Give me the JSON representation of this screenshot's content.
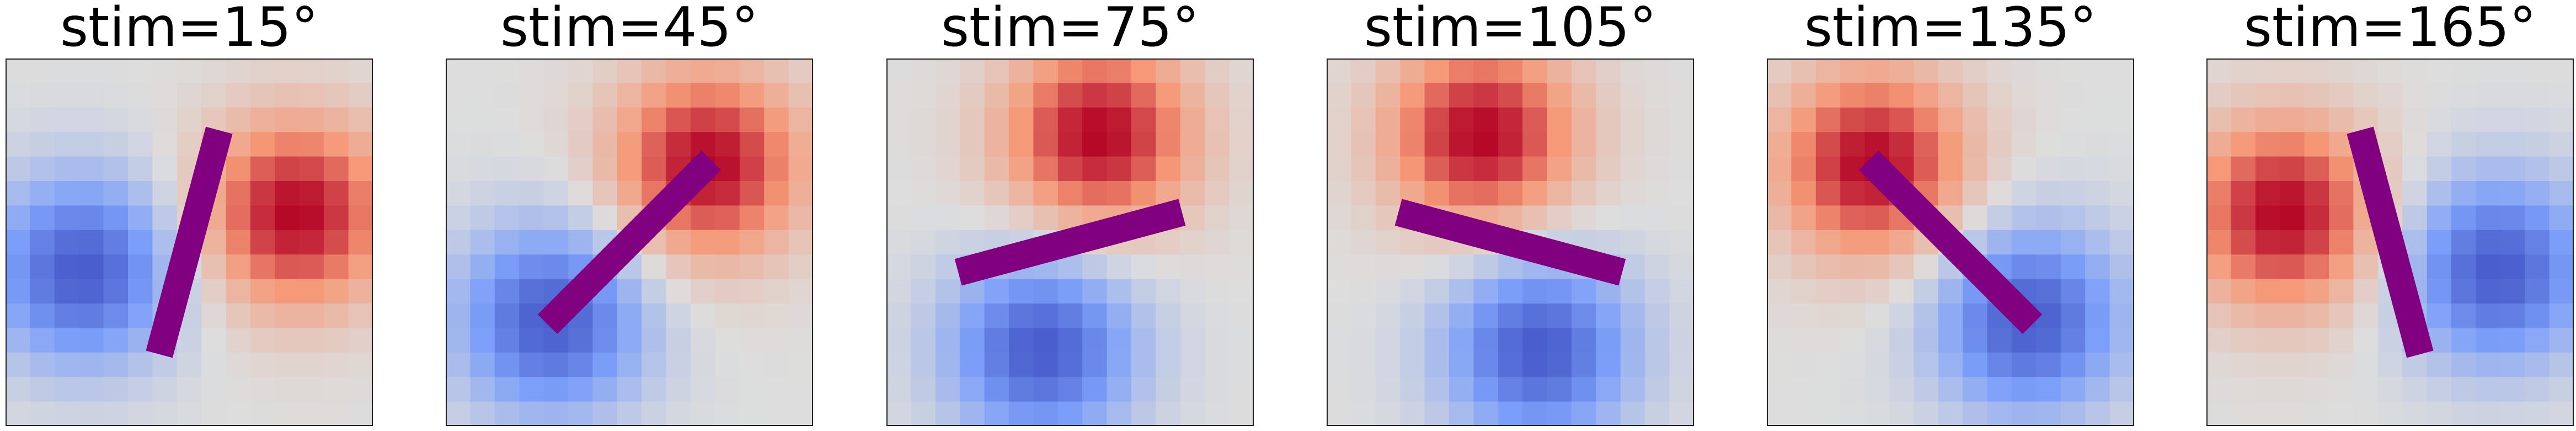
{
  "chart_data": [
    {
      "type": "heatmap",
      "title": "stim=15°",
      "stimulus_orientation_deg": 15,
      "bar_color": "#800080",
      "colormap": "coolwarm",
      "grid_size": 15
    },
    {
      "type": "heatmap",
      "title": "stim=45°",
      "stimulus_orientation_deg": 45,
      "bar_color": "#800080",
      "colormap": "coolwarm",
      "grid_size": 15
    },
    {
      "type": "heatmap",
      "title": "stim=75°",
      "stimulus_orientation_deg": 75,
      "bar_color": "#800080",
      "colormap": "coolwarm",
      "grid_size": 15
    },
    {
      "type": "heatmap",
      "title": "stim=105°",
      "stimulus_orientation_deg": 105,
      "bar_color": "#800080",
      "colormap": "coolwarm",
      "grid_size": 15
    },
    {
      "type": "heatmap",
      "title": "stim=135°",
      "stimulus_orientation_deg": 135,
      "bar_color": "#800080",
      "colormap": "coolwarm",
      "grid_size": 15
    },
    {
      "type": "heatmap",
      "title": "stim=165°",
      "stimulus_orientation_deg": 165,
      "bar_color": "#800080",
      "colormap": "coolwarm",
      "grid_size": 15
    }
  ]
}
